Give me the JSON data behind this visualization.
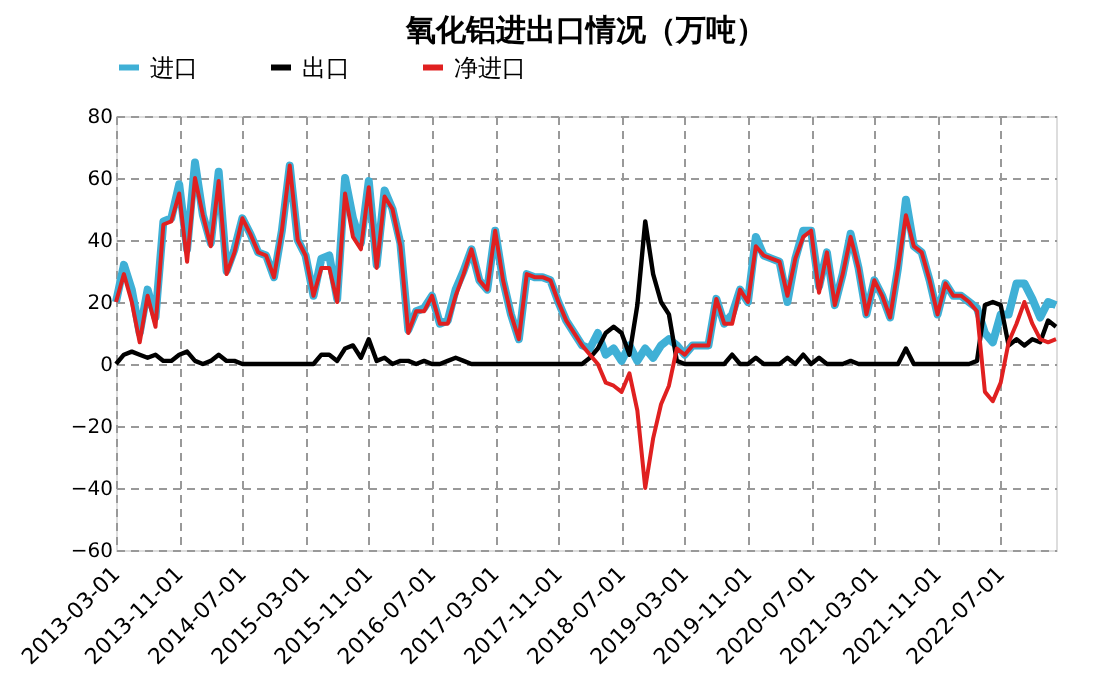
{
  "chart_data": {
    "type": "line",
    "title": "氧化铝进出口情况（万吨）",
    "categories": [
      "2013-03-01",
      null,
      null,
      null,
      null,
      null,
      null,
      null,
      "2013-11-01",
      null,
      null,
      null,
      null,
      null,
      null,
      null,
      "2014-07-01",
      null,
      null,
      null,
      null,
      null,
      null,
      null,
      "2015-03-01",
      null,
      null,
      null,
      null,
      null,
      null,
      null,
      "2015-11-01",
      null,
      null,
      null,
      null,
      null,
      null,
      null,
      "2016-07-01",
      null,
      null,
      null,
      null,
      null,
      null,
      null,
      "2017-03-01",
      null,
      null,
      null,
      null,
      null,
      null,
      null,
      "2017-11-01",
      null,
      null,
      null,
      null,
      null,
      null,
      null,
      "2018-07-01",
      null,
      null,
      null,
      null,
      null,
      null,
      null,
      "2019-03-01",
      null,
      null,
      null,
      null,
      null,
      null,
      null,
      "2019-11-01",
      null,
      null,
      null,
      null,
      null,
      null,
      null,
      "2020-07-01",
      null,
      null,
      null,
      null,
      null,
      null,
      null,
      "2021-03-01",
      null,
      null,
      null,
      null,
      null,
      null,
      null,
      "2021-11-01",
      null,
      null,
      null,
      null,
      null,
      null,
      null,
      "2022-07-01",
      null,
      null,
      null,
      null,
      null,
      null,
      null
    ],
    "series": [
      {
        "name": "进口",
        "color": "#3fb0d6",
        "values": [
          20,
          32,
          24,
          10,
          24,
          15,
          46,
          47,
          58,
          37,
          65,
          48,
          39,
          62,
          30,
          37,
          47,
          42,
          36,
          35,
          28,
          43,
          64,
          40,
          35,
          22,
          34,
          35,
          21,
          60,
          47,
          39,
          59,
          32,
          56,
          50,
          39,
          11,
          17,
          18,
          22,
          13,
          14,
          24,
          30,
          37,
          27,
          24,
          43,
          27,
          16,
          8,
          29,
          28,
          28,
          27,
          20,
          14,
          10,
          6,
          5,
          10,
          3,
          5,
          1,
          6,
          1,
          5,
          2,
          6,
          8,
          6,
          3,
          6,
          6,
          6,
          21,
          13,
          16,
          24,
          20,
          41,
          35,
          34,
          33,
          20,
          34,
          43,
          43,
          25,
          36,
          19,
          29,
          42,
          31,
          16,
          27,
          22,
          15,
          31,
          53,
          38,
          36,
          27,
          16,
          26,
          22,
          22,
          20,
          18,
          10,
          7,
          16,
          16,
          26,
          26,
          21,
          15,
          20,
          19
        ]
      },
      {
        "name": "出口",
        "color": "#000000",
        "values": [
          0,
          3,
          4,
          3,
          2,
          3,
          1,
          1,
          3,
          4,
          1,
          0,
          1,
          3,
          1,
          1,
          0,
          0,
          0,
          0,
          0,
          0,
          0,
          0,
          0,
          0,
          3,
          3,
          1,
          5,
          6,
          2,
          8,
          1,
          2,
          0,
          1,
          1,
          0,
          1,
          0,
          0,
          1,
          2,
          1,
          0,
          0,
          0,
          0,
          0,
          0,
          0,
          0,
          0,
          0,
          0,
          0,
          0,
          0,
          0,
          2,
          5,
          10,
          12,
          10,
          3,
          19,
          46,
          29,
          20,
          16,
          1,
          0,
          0,
          0,
          0,
          0,
          0,
          3,
          0,
          0,
          2,
          0,
          0,
          0,
          2,
          0,
          3,
          0,
          2,
          0,
          0,
          0,
          1,
          0,
          0,
          0,
          0,
          0,
          0,
          5,
          0,
          0,
          0,
          0,
          0,
          0,
          0,
          0,
          1,
          19,
          20,
          19,
          6,
          8,
          6,
          8,
          7,
          14,
          12
        ]
      },
      {
        "name": "净进口",
        "color": "#e02020",
        "values": [
          20,
          29,
          20,
          7,
          22,
          12,
          45,
          46,
          55,
          33,
          60,
          48,
          38,
          59,
          29,
          36,
          47,
          42,
          36,
          35,
          28,
          43,
          64,
          40,
          35,
          22,
          31,
          31,
          20,
          55,
          41,
          37,
          57,
          31,
          54,
          50,
          38,
          10,
          17,
          17,
          22,
          13,
          13,
          22,
          29,
          37,
          27,
          24,
          43,
          27,
          16,
          8,
          29,
          28,
          28,
          27,
          20,
          14,
          10,
          6,
          3,
          0,
          -6,
          -7,
          -9,
          -3,
          -15,
          -40,
          -24,
          -13,
          -7,
          5,
          3,
          6,
          6,
          6,
          21,
          13,
          13,
          24,
          20,
          38,
          35,
          34,
          33,
          22,
          34,
          41,
          43,
          23,
          36,
          19,
          29,
          41,
          31,
          16,
          27,
          22,
          15,
          31,
          48,
          38,
          36,
          27,
          16,
          26,
          22,
          22,
          20,
          17,
          -9,
          -12,
          -6,
          7,
          13,
          20,
          13,
          8,
          7,
          8
        ]
      }
    ],
    "ylim": [
      -60,
      80
    ],
    "yticks": [
      -60,
      -40,
      -20,
      0,
      20,
      40,
      60,
      80
    ],
    "grid": true,
    "legend": "top",
    "marker": "none",
    "line_style": "solid"
  }
}
